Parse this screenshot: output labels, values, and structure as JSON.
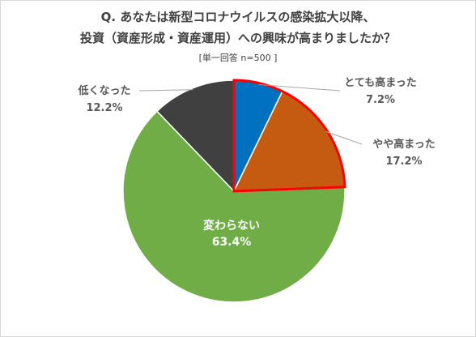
{
  "chart_data": {
    "type": "pie",
    "title": "Q. あなたは新型コロナウイルスの感染拡大以降、",
    "title_line2": "投資（資産形成・資産運用）への興味が高まりましたか？",
    "subtitle": "[単一回答 n=500 ]",
    "slices": [
      {
        "label": "とても高まった",
        "value": 7.2,
        "value_label": "7.2%",
        "color": "#0070c0"
      },
      {
        "label": "やや高まった",
        "value": 17.2,
        "value_label": "17.2%",
        "color": "#c55a11"
      },
      {
        "label": "変わらない",
        "value": 63.4,
        "value_label": "63.4%",
        "color": "#70ad47"
      },
      {
        "label": "低くなった",
        "value": 12.2,
        "value_label": "12.2%",
        "color": "#404040"
      }
    ],
    "highlight": {
      "slices": [
        "とても高まった",
        "やや高まった"
      ],
      "color": "#ff0000"
    },
    "start_angle_deg": 0,
    "direction": "clockwise"
  }
}
